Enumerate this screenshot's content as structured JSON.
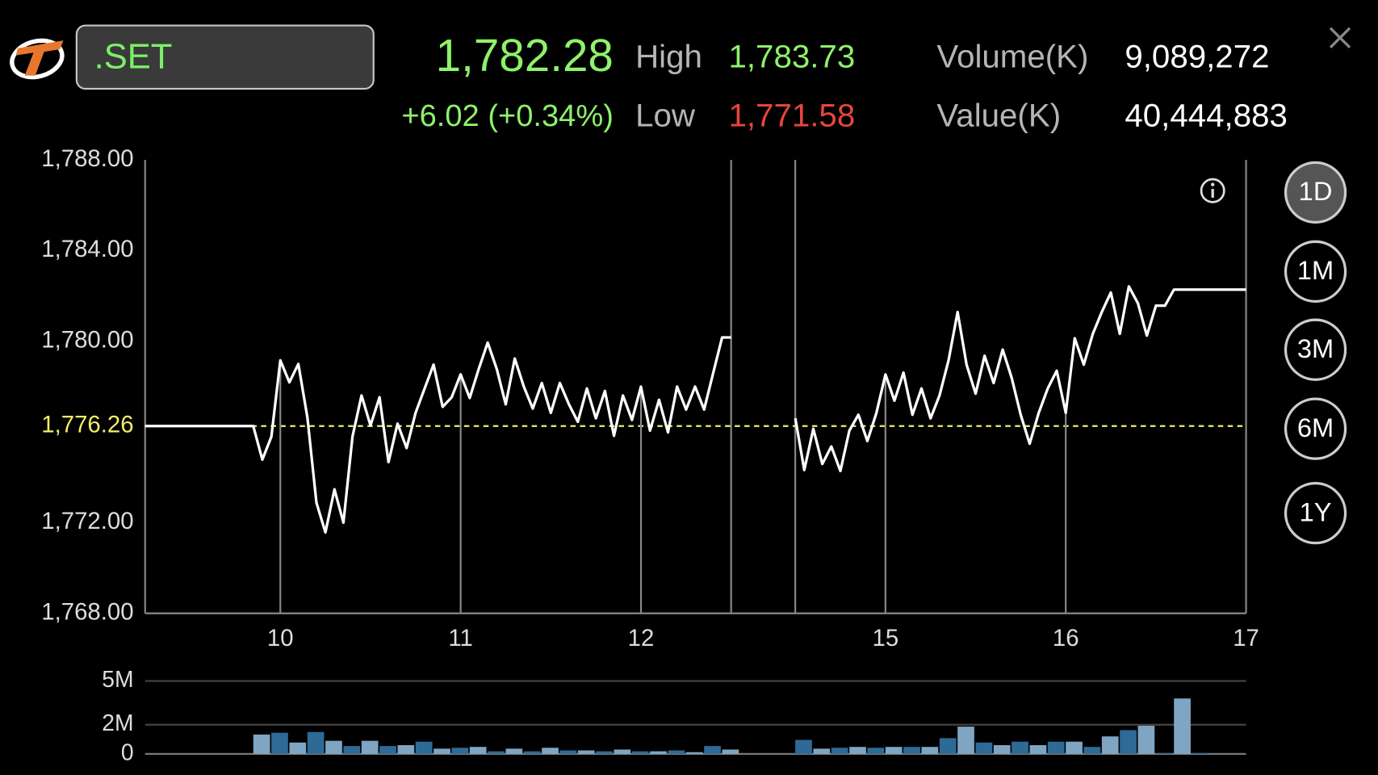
{
  "header": {
    "symbol": ".SET",
    "last": "1,782.28",
    "change": "+6.02 (+0.34%)",
    "high_label": "High",
    "high": "1,783.73",
    "low_label": "Low",
    "low": "1,771.58",
    "volume_label": "Volume(K)",
    "volume": "9,089,272",
    "value_label": "Value(K)",
    "value": "40,444,883"
  },
  "periods": [
    "1D",
    "1M",
    "3M",
    "6M",
    "1Y"
  ],
  "selected_period": "1D",
  "chart_data": [
    {
      "type": "line",
      "color": "#ffffff",
      "x": [
        9.25,
        9.85,
        9.9,
        9.95,
        10,
        10.05,
        10.1,
        10.15,
        10.2,
        10.25,
        10.3,
        10.35,
        10.4,
        10.45,
        10.5,
        10.55,
        10.6,
        10.65,
        10.7,
        10.75,
        10.8,
        10.85,
        10.9,
        10.95,
        11,
        11.05,
        11.1,
        11.15,
        11.2,
        11.25,
        11.3,
        11.35,
        11.4,
        11.45,
        11.5,
        11.55,
        11.6,
        11.65,
        11.7,
        11.75,
        11.8,
        11.85,
        11.9,
        11.95,
        12,
        12.05,
        12.1,
        12.15,
        12.2,
        12.25,
        12.3,
        12.35,
        12.4,
        12.45,
        12.5,
        13.5,
        14.5,
        14.55,
        14.6,
        14.65,
        14.7,
        14.75,
        14.8,
        14.85,
        14.9,
        14.95,
        15,
        15.05,
        15.1,
        15.15,
        15.2,
        15.25,
        15.3,
        15.35,
        15.4,
        15.45,
        15.5,
        15.55,
        15.6,
        15.65,
        15.7,
        15.75,
        15.8,
        15.85,
        15.9,
        15.95,
        16,
        16.05,
        16.1,
        16.15,
        16.2,
        16.25,
        16.3,
        16.35,
        16.4,
        16.45,
        16.5,
        16.55,
        16.6,
        17
      ],
      "values": [
        1776.26,
        1776.26,
        1774.78,
        1775.79,
        1779.16,
        1778.19,
        1779.0,
        1776.64,
        1772.88,
        1771.57,
        1773.47,
        1772.0,
        1775.79,
        1777.61,
        1776.29,
        1777.53,
        1774.67,
        1776.37,
        1775.29,
        1776.84,
        1777.92,
        1778.97,
        1777.11,
        1777.53,
        1778.54,
        1777.5,
        1778.78,
        1779.94,
        1778.78,
        1777.22,
        1779.24,
        1778.0,
        1777.03,
        1778.16,
        1776.84,
        1778.16,
        1777.22,
        1776.45,
        1777.92,
        1776.6,
        1777.81,
        1775.83,
        1777.61,
        1776.53,
        1778.0,
        1776.06,
        1777.42,
        1775.98,
        1778.0,
        1776.99,
        1778.0,
        1776.99,
        1778.58,
        1780.17,
        1780.17,
        null,
        1776.6,
        1774.32,
        1776.14,
        1774.59,
        1775.36,
        1774.28,
        1776.06,
        1776.76,
        1775.6,
        1776.84,
        1778.54,
        1777.38,
        1778.62,
        1776.76,
        1777.92,
        1776.6,
        1777.61,
        1779.16,
        1781.29,
        1778.97,
        1777.69,
        1779.36,
        1778.16,
        1779.63,
        1778.39,
        1776.76,
        1775.48,
        1776.84,
        1777.92,
        1778.7,
        1776.84,
        1780.13,
        1778.97,
        1780.33,
        1781.29,
        1782.15,
        1780.33,
        1782.42,
        1781.68,
        1780.25,
        1781.57,
        1781.57,
        1782.28,
        1782.28
      ],
      "xlim": [
        9.25,
        17
      ],
      "xbreak": [
        12.5,
        14.5
      ],
      "xticks": [
        10,
        11,
        12,
        15,
        16,
        17
      ],
      "ylim": [
        1768,
        1788
      ],
      "yticks": [
        {
          "value": 1768,
          "label": "1,768.00"
        },
        {
          "value": 1772,
          "label": "1,772.00"
        },
        {
          "value": 1780,
          "label": "1,780.00"
        },
        {
          "value": 1784,
          "label": "1,784.00"
        },
        {
          "value": 1788,
          "label": "1,788.00"
        }
      ],
      "reference": {
        "value": 1776.26,
        "label": "1,776.26",
        "color": "#f2ee6a"
      }
    },
    {
      "type": "bar",
      "colors": [
        "#7fa5c2",
        "#2e6a96"
      ],
      "x": [
        9.85,
        9.95,
        10.05,
        10.15,
        10.25,
        10.35,
        10.45,
        10.55,
        10.65,
        10.75,
        10.85,
        10.95,
        11.05,
        11.15,
        11.25,
        11.35,
        11.45,
        11.55,
        11.65,
        11.75,
        11.85,
        11.95,
        12.05,
        12.15,
        12.25,
        12.35,
        12.45,
        14.5,
        14.6,
        14.7,
        14.8,
        14.9,
        15,
        15.1,
        15.2,
        15.3,
        15.4,
        15.5,
        15.6,
        15.7,
        15.8,
        15.9,
        16,
        16.1,
        16.2,
        16.3,
        16.4,
        16.5,
        16.6,
        16.7
      ],
      "values": [
        1330000,
        1450000,
        780000,
        1500000,
        900000,
        540000,
        900000,
        540000,
        600000,
        840000,
        360000,
        420000,
        480000,
        180000,
        360000,
        180000,
        420000,
        240000,
        240000,
        180000,
        300000,
        180000,
        180000,
        240000,
        120000,
        540000,
        300000,
        960000,
        360000,
        420000,
        480000,
        420000,
        480000,
        480000,
        480000,
        1080000,
        1870000,
        780000,
        600000,
        840000,
        600000,
        840000,
        840000,
        480000,
        1200000,
        1630000,
        1930000,
        60000,
        3800000,
        60000
      ],
      "ylim": [
        0,
        5000000
      ],
      "yticks": [
        0,
        {
          "value": 2000000,
          "label": "2M"
        },
        {
          "value": 5000000,
          "label": "5M"
        }
      ]
    }
  ]
}
